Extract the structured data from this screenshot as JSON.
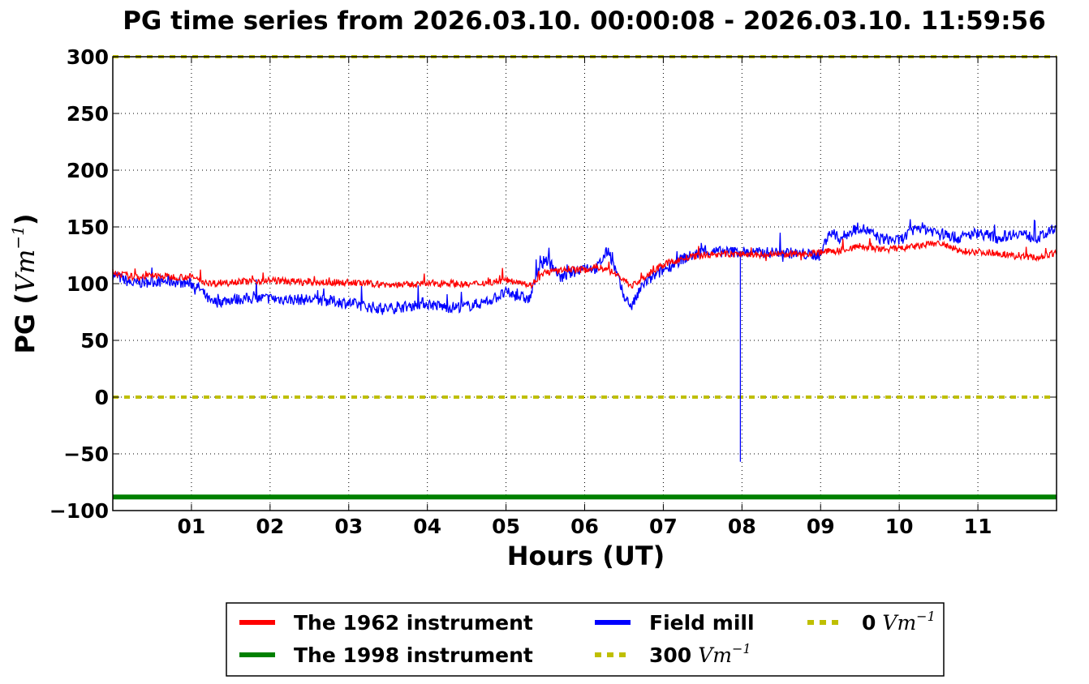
{
  "chart_data": {
    "type": "line",
    "title": "PG time series from 2026.03.10. 00:00:08 - 2026.03.10. 11:59:56",
    "xlabel": "Hours (UT)",
    "ylabel_text": "PG (",
    "ylabel_unit": "Vm",
    "ylabel_exp": "−1",
    "ylabel_close": ")",
    "xlim": [
      0,
      12
    ],
    "ylim": [
      -100,
      300
    ],
    "grid": true,
    "xticks": [
      {
        "value": 1,
        "label": "01"
      },
      {
        "value": 2,
        "label": "02"
      },
      {
        "value": 3,
        "label": "03"
      },
      {
        "value": 4,
        "label": "04"
      },
      {
        "value": 5,
        "label": "05"
      },
      {
        "value": 6,
        "label": "06"
      },
      {
        "value": 7,
        "label": "07"
      },
      {
        "value": 8,
        "label": "08"
      },
      {
        "value": 9,
        "label": "09"
      },
      {
        "value": 10,
        "label": "10"
      },
      {
        "value": 11,
        "label": "11"
      }
    ],
    "yticks": [
      {
        "value": 300,
        "label": "300"
      },
      {
        "value": 250,
        "label": "250"
      },
      {
        "value": 200,
        "label": "200"
      },
      {
        "value": 150,
        "label": "150"
      },
      {
        "value": 100,
        "label": "100"
      },
      {
        "value": 50,
        "label": "50"
      },
      {
        "value": 0,
        "label": "0"
      },
      {
        "value": -50,
        "label": "−50"
      },
      {
        "value": -100,
        "label": "−100"
      }
    ],
    "legend_placement": "bottom-center",
    "series": [
      {
        "name": "The 1962 instrument",
        "color": "#ff0000",
        "x": [
          0,
          0.25,
          0.5,
          0.75,
          1.0,
          1.15,
          1.25,
          1.5,
          1.75,
          2.0,
          2.25,
          2.5,
          2.75,
          3.0,
          3.25,
          3.5,
          3.75,
          4.0,
          4.25,
          4.5,
          4.75,
          5.0,
          5.2,
          5.3,
          5.4,
          5.5,
          5.65,
          5.8,
          6.0,
          6.15,
          6.3,
          6.45,
          6.6,
          6.75,
          7.0,
          7.25,
          7.5,
          7.75,
          8.0,
          8.25,
          8.5,
          8.75,
          9.0,
          9.25,
          9.5,
          9.75,
          10.0,
          10.25,
          10.5,
          10.75,
          11.0,
          11.25,
          11.5,
          11.75,
          12.0
        ],
        "y": [
          110,
          106,
          107,
          106,
          106,
          102,
          100,
          102,
          102,
          103,
          102,
          101,
          101,
          101,
          100,
          99,
          99,
          100,
          101,
          99,
          101,
          103,
          102,
          98,
          104,
          110,
          111,
          113,
          112,
          115,
          112,
          106,
          98,
          105,
          117,
          122,
          125,
          126,
          126,
          125,
          126,
          126,
          128,
          129,
          133,
          130,
          131,
          133,
          136,
          129,
          128,
          127,
          124,
          123,
          127
        ],
        "jitter": 3,
        "dip": null
      },
      {
        "name": "The 1998 instrument",
        "color": "#008000",
        "x": [
          0,
          12
        ],
        "y": [
          -88,
          -88
        ],
        "jitter": 0,
        "dip": null
      },
      {
        "name": "Field mill",
        "color": "#0000ff",
        "x": [
          0,
          0.25,
          0.5,
          0.75,
          1.0,
          1.1,
          1.25,
          1.5,
          1.75,
          2.0,
          2.25,
          2.5,
          2.75,
          3.0,
          3.2,
          3.35,
          3.5,
          3.75,
          3.95,
          4.25,
          4.5,
          4.75,
          5.0,
          5.2,
          5.3,
          5.4,
          5.5,
          5.6,
          5.7,
          5.85,
          6.0,
          6.15,
          6.3,
          6.4,
          6.5,
          6.6,
          6.75,
          7.0,
          7.25,
          7.5,
          7.75,
          8.0,
          8.25,
          8.5,
          8.75,
          9.0,
          9.1,
          9.25,
          9.5,
          9.75,
          10.0,
          10.25,
          10.5,
          10.75,
          11.0,
          11.25,
          11.5,
          11.75,
          12.0
        ],
        "y": [
          108,
          100,
          102,
          102,
          100,
          96,
          83,
          86,
          87,
          87,
          86,
          86,
          85,
          83,
          80,
          79,
          78,
          80,
          83,
          79,
          80,
          84,
          92,
          88,
          86,
          110,
          122,
          115,
          105,
          110,
          115,
          113,
          130,
          110,
          88,
          80,
          100,
          112,
          122,
          128,
          128,
          128,
          127,
          128,
          126,
          125,
          145,
          140,
          150,
          140,
          138,
          150,
          145,
          140,
          145,
          140,
          145,
          140,
          148
        ],
        "jitter": 5,
        "dip": {
          "x": 7.98,
          "y": -57
        }
      },
      {
        "name": "300",
        "unit": "Vm",
        "exp": "−1",
        "color": "#bfbf00",
        "dashed": true,
        "x": [
          0,
          12
        ],
        "y": [
          300,
          300
        ],
        "jitter": 0,
        "dip": null
      },
      {
        "name": "0",
        "unit": "Vm",
        "exp": "−1",
        "color": "#bfbf00",
        "dashed": true,
        "x": [
          0,
          12
        ],
        "y": [
          0,
          0
        ],
        "jitter": 0,
        "dip": null
      }
    ]
  }
}
